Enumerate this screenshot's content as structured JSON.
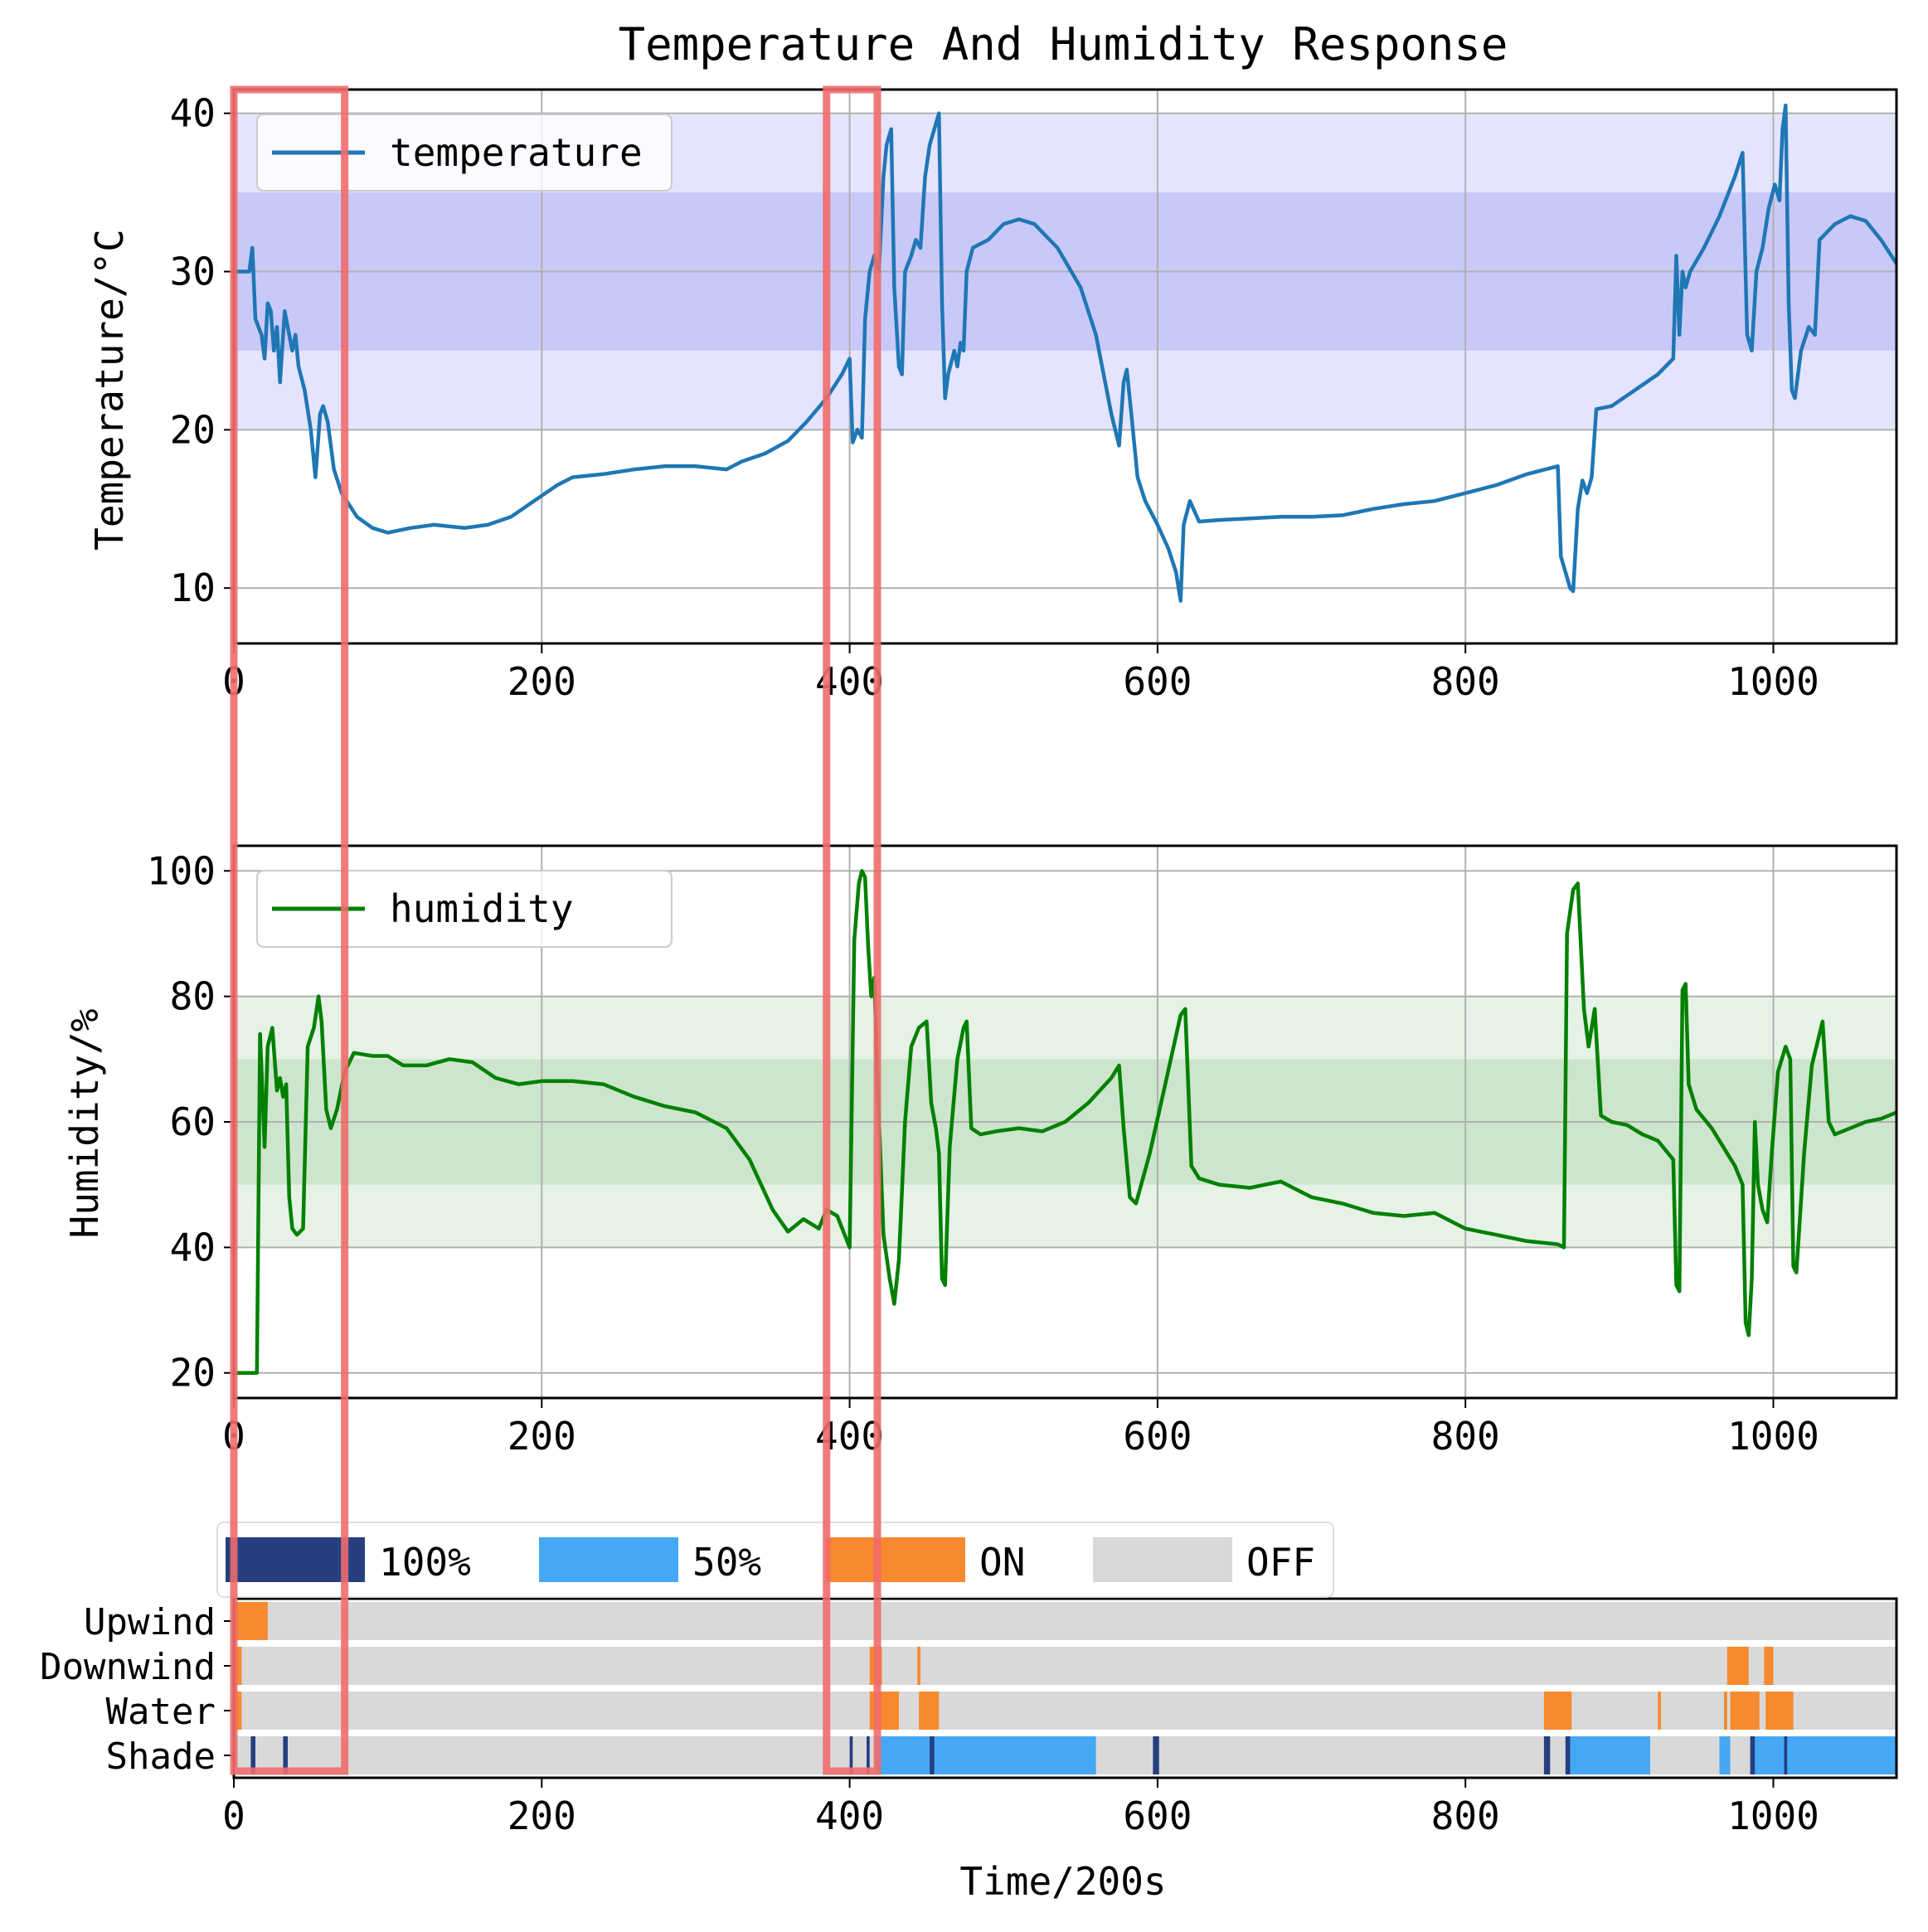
{
  "chart_data": {
    "title": "Temperature And Humidity Response",
    "x_label": "Time/200s",
    "x_range": [
      0,
      1080
    ],
    "x_ticks": [
      0,
      200,
      400,
      600,
      800,
      1000
    ],
    "highlight_windows": [
      [
        0,
        72
      ],
      [
        385,
        418
      ]
    ],
    "colors": {
      "temperature": "#1f77b4",
      "humidity": "#008000",
      "temp_band_outer": "#e4e4ff",
      "temp_band_inner": "#c9c9f9",
      "hum_band_outer": "#e5f2e5",
      "hum_band_inner": "#cce5cc",
      "highlight": "#ef6b6b",
      "off": "#d9d9d9",
      "full": "#253f80",
      "half": "#45a8f5",
      "on": "#f7892e"
    },
    "temperature": {
      "type": "line",
      "series_name": "temperature",
      "y_label": "Temperature/°C",
      "y_range": [
        6.5,
        41.5
      ],
      "y_ticks": [
        10,
        20,
        30,
        40
      ],
      "bands": {
        "outer": [
          20,
          40
        ],
        "inner": [
          25,
          35
        ]
      },
      "points": [
        [
          0,
          30
        ],
        [
          10,
          30
        ],
        [
          12,
          31.5
        ],
        [
          14,
          27
        ],
        [
          18,
          26
        ],
        [
          20,
          24.5
        ],
        [
          22,
          28
        ],
        [
          24,
          27.5
        ],
        [
          26,
          25
        ],
        [
          28,
          26.5
        ],
        [
          30,
          23
        ],
        [
          33,
          27.5
        ],
        [
          36,
          26
        ],
        [
          38,
          25
        ],
        [
          40,
          26
        ],
        [
          42,
          24
        ],
        [
          46,
          22.5
        ],
        [
          50,
          20
        ],
        [
          53,
          17
        ],
        [
          56,
          21
        ],
        [
          58,
          21.5
        ],
        [
          61,
          20.5
        ],
        [
          65,
          17.5
        ],
        [
          70,
          16
        ],
        [
          80,
          14.5
        ],
        [
          90,
          13.8
        ],
        [
          100,
          13.5
        ],
        [
          115,
          13.8
        ],
        [
          130,
          14
        ],
        [
          150,
          13.8
        ],
        [
          165,
          14
        ],
        [
          180,
          14.5
        ],
        [
          195,
          15.5
        ],
        [
          210,
          16.5
        ],
        [
          220,
          17
        ],
        [
          240,
          17.2
        ],
        [
          260,
          17.5
        ],
        [
          280,
          17.7
        ],
        [
          300,
          17.7
        ],
        [
          320,
          17.5
        ],
        [
          330,
          18
        ],
        [
          345,
          18.5
        ],
        [
          360,
          19.3
        ],
        [
          372,
          20.5
        ],
        [
          385,
          22
        ],
        [
          395,
          23.5
        ],
        [
          400,
          24.5
        ],
        [
          402,
          19.2
        ],
        [
          405,
          20
        ],
        [
          408,
          19.5
        ],
        [
          410,
          27
        ],
        [
          413,
          30
        ],
        [
          416,
          31
        ],
        [
          419,
          30
        ],
        [
          422,
          36
        ],
        [
          424,
          38
        ],
        [
          427,
          39
        ],
        [
          429,
          29
        ],
        [
          432,
          24
        ],
        [
          434,
          23.5
        ],
        [
          436,
          30
        ],
        [
          440,
          31
        ],
        [
          443,
          32
        ],
        [
          446,
          31.5
        ],
        [
          449,
          36
        ],
        [
          452,
          38
        ],
        [
          455,
          39
        ],
        [
          458,
          40
        ],
        [
          460,
          28
        ],
        [
          462,
          22
        ],
        [
          464,
          23.5
        ],
        [
          468,
          25
        ],
        [
          470,
          24
        ],
        [
          472,
          25.5
        ],
        [
          474,
          25
        ],
        [
          476,
          30
        ],
        [
          480,
          31.5
        ],
        [
          490,
          32
        ],
        [
          500,
          33
        ],
        [
          510,
          33.3
        ],
        [
          520,
          33
        ],
        [
          535,
          31.5
        ],
        [
          550,
          29
        ],
        [
          560,
          26
        ],
        [
          570,
          21
        ],
        [
          575,
          19
        ],
        [
          578,
          23
        ],
        [
          580,
          23.8
        ],
        [
          583,
          21
        ],
        [
          587,
          17
        ],
        [
          592,
          15.5
        ],
        [
          600,
          14
        ],
        [
          607,
          12.5
        ],
        [
          612,
          11
        ],
        [
          615,
          9.2
        ],
        [
          617,
          14
        ],
        [
          621,
          15.5
        ],
        [
          627,
          14.2
        ],
        [
          640,
          14.3
        ],
        [
          660,
          14.4
        ],
        [
          680,
          14.5
        ],
        [
          700,
          14.5
        ],
        [
          720,
          14.6
        ],
        [
          740,
          15
        ],
        [
          760,
          15.3
        ],
        [
          780,
          15.5
        ],
        [
          800,
          16
        ],
        [
          820,
          16.5
        ],
        [
          840,
          17.2
        ],
        [
          860,
          17.7
        ],
        [
          862,
          12
        ],
        [
          865,
          11
        ],
        [
          868,
          10
        ],
        [
          870,
          9.8
        ],
        [
          873,
          15
        ],
        [
          876,
          16.8
        ],
        [
          879,
          16
        ],
        [
          882,
          17
        ],
        [
          885,
          21.3
        ],
        [
          895,
          21.5
        ],
        [
          910,
          22.5
        ],
        [
          925,
          23.5
        ],
        [
          935,
          24.5
        ],
        [
          937,
          31
        ],
        [
          939,
          26
        ],
        [
          941,
          30
        ],
        [
          943,
          29
        ],
        [
          946,
          30
        ],
        [
          955,
          31.5
        ],
        [
          965,
          33.5
        ],
        [
          975,
          36
        ],
        [
          980,
          37.5
        ],
        [
          983,
          26
        ],
        [
          986,
          25
        ],
        [
          989,
          30
        ],
        [
          993,
          31.5
        ],
        [
          997,
          34
        ],
        [
          1001,
          35.5
        ],
        [
          1004,
          34.5
        ],
        [
          1006,
          39
        ],
        [
          1008,
          40.5
        ],
        [
          1010,
          28
        ],
        [
          1012,
          22.5
        ],
        [
          1014,
          22
        ],
        [
          1018,
          25
        ],
        [
          1023,
          26.5
        ],
        [
          1027,
          26
        ],
        [
          1030,
          32
        ],
        [
          1040,
          33
        ],
        [
          1050,
          33.5
        ],
        [
          1060,
          33.2
        ],
        [
          1070,
          32
        ],
        [
          1080,
          30.5
        ]
      ]
    },
    "humidity": {
      "type": "line",
      "series_name": "humidity",
      "y_label": "Humidity/%",
      "y_range": [
        16,
        104
      ],
      "y_ticks": [
        20,
        40,
        60,
        80,
        100
      ],
      "bands": {
        "outer": [
          40,
          80
        ],
        "inner": [
          50,
          70
        ]
      },
      "points": [
        [
          0,
          20
        ],
        [
          15,
          20
        ],
        [
          17,
          74
        ],
        [
          20,
          56
        ],
        [
          22,
          72
        ],
        [
          25,
          75
        ],
        [
          28,
          65
        ],
        [
          30,
          67
        ],
        [
          32,
          64
        ],
        [
          34,
          66
        ],
        [
          36,
          48
        ],
        [
          38,
          43
        ],
        [
          41,
          42
        ],
        [
          45,
          43
        ],
        [
          48,
          72
        ],
        [
          52,
          75
        ],
        [
          55,
          80
        ],
        [
          57,
          76
        ],
        [
          60,
          62
        ],
        [
          63,
          59
        ],
        [
          67,
          62
        ],
        [
          72,
          68
        ],
        [
          78,
          71
        ],
        [
          90,
          70.5
        ],
        [
          100,
          70.5
        ],
        [
          110,
          69
        ],
        [
          125,
          69
        ],
        [
          140,
          70
        ],
        [
          155,
          69.5
        ],
        [
          170,
          67
        ],
        [
          185,
          66
        ],
        [
          200,
          66.5
        ],
        [
          220,
          66.5
        ],
        [
          240,
          66
        ],
        [
          260,
          64
        ],
        [
          280,
          62.5
        ],
        [
          300,
          61.5
        ],
        [
          320,
          59
        ],
        [
          335,
          54
        ],
        [
          350,
          46
        ],
        [
          360,
          42.5
        ],
        [
          370,
          44.5
        ],
        [
          380,
          43
        ],
        [
          385,
          46
        ],
        [
          392,
          45
        ],
        [
          400,
          40
        ],
        [
          403,
          89
        ],
        [
          406,
          98
        ],
        [
          408,
          100
        ],
        [
          410,
          99
        ],
        [
          412,
          88
        ],
        [
          414,
          80
        ],
        [
          416,
          83
        ],
        [
          418,
          67
        ],
        [
          422,
          42
        ],
        [
          426,
          35
        ],
        [
          429,
          31
        ],
        [
          432,
          38
        ],
        [
          436,
          60
        ],
        [
          440,
          72
        ],
        [
          445,
          75
        ],
        [
          450,
          76
        ],
        [
          453,
          63
        ],
        [
          456,
          59
        ],
        [
          458,
          55
        ],
        [
          460,
          35
        ],
        [
          462,
          34
        ],
        [
          465,
          56
        ],
        [
          470,
          70
        ],
        [
          474,
          75
        ],
        [
          476,
          76
        ],
        [
          479,
          59
        ],
        [
          485,
          58
        ],
        [
          495,
          58.5
        ],
        [
          510,
          59
        ],
        [
          525,
          58.5
        ],
        [
          540,
          60
        ],
        [
          555,
          63
        ],
        [
          570,
          67
        ],
        [
          575,
          69
        ],
        [
          578,
          59
        ],
        [
          582,
          48
        ],
        [
          586,
          47
        ],
        [
          595,
          55
        ],
        [
          605,
          66
        ],
        [
          615,
          77
        ],
        [
          618,
          78
        ],
        [
          622,
          53
        ],
        [
          627,
          51
        ],
        [
          640,
          50
        ],
        [
          660,
          49.5
        ],
        [
          680,
          50.5
        ],
        [
          700,
          48
        ],
        [
          720,
          47
        ],
        [
          740,
          45.5
        ],
        [
          760,
          45
        ],
        [
          780,
          45.5
        ],
        [
          800,
          43
        ],
        [
          820,
          42
        ],
        [
          840,
          41
        ],
        [
          860,
          40.5
        ],
        [
          864,
          40
        ],
        [
          866,
          90
        ],
        [
          870,
          97
        ],
        [
          873,
          98
        ],
        [
          877,
          78
        ],
        [
          880,
          72
        ],
        [
          884,
          78
        ],
        [
          888,
          61
        ],
        [
          895,
          60
        ],
        [
          905,
          59.5
        ],
        [
          915,
          58
        ],
        [
          925,
          57
        ],
        [
          935,
          54
        ],
        [
          937,
          34
        ],
        [
          939,
          33
        ],
        [
          941,
          81
        ],
        [
          943,
          82
        ],
        [
          945,
          66
        ],
        [
          950,
          62
        ],
        [
          960,
          59
        ],
        [
          975,
          53
        ],
        [
          980,
          50
        ],
        [
          982,
          28
        ],
        [
          984,
          26
        ],
        [
          986,
          35
        ],
        [
          988,
          60
        ],
        [
          990,
          50
        ],
        [
          993,
          46
        ],
        [
          996,
          44
        ],
        [
          999,
          55
        ],
        [
          1003,
          68
        ],
        [
          1008,
          72
        ],
        [
          1011,
          70
        ],
        [
          1013,
          37
        ],
        [
          1015,
          36
        ],
        [
          1020,
          55
        ],
        [
          1025,
          69
        ],
        [
          1030,
          74
        ],
        [
          1032,
          76
        ],
        [
          1036,
          60
        ],
        [
          1040,
          58
        ],
        [
          1050,
          59
        ],
        [
          1060,
          60
        ],
        [
          1070,
          60.5
        ],
        [
          1080,
          61.5
        ]
      ]
    },
    "actuators": {
      "type": "state_timeline",
      "legend": [
        {
          "key": "full",
          "label": "100%"
        },
        {
          "key": "half",
          "label": "50%"
        },
        {
          "key": "on",
          "label": "ON"
        },
        {
          "key": "off",
          "label": "OFF"
        }
      ],
      "rows": [
        {
          "name": "Upwind",
          "segments": [
            [
              0,
              22,
              "on"
            ]
          ]
        },
        {
          "name": "Downwind",
          "segments": [
            [
              0,
              5,
              "on"
            ],
            [
              413,
              421,
              "on"
            ],
            [
              444,
              446,
              "on"
            ],
            [
              970,
              984,
              "on"
            ],
            [
              994,
              1000,
              "on"
            ]
          ]
        },
        {
          "name": "Water",
          "segments": [
            [
              0,
              5,
              "on"
            ],
            [
              413,
              432,
              "on"
            ],
            [
              445,
              458,
              "on"
            ],
            [
              851,
              869,
              "on"
            ],
            [
              925,
              927,
              "on"
            ],
            [
              968,
              970,
              "on"
            ],
            [
              972,
              991,
              "on"
            ],
            [
              995,
              1013,
              "on"
            ]
          ]
        },
        {
          "name": "Shade",
          "segments": [
            [
              11,
              14,
              "full"
            ],
            [
              32,
              35,
              "full"
            ],
            [
              400,
              402,
              "full"
            ],
            [
              411,
              413,
              "full"
            ],
            [
              417,
              560,
              "half"
            ],
            [
              452,
              455,
              "full"
            ],
            [
              597,
              601,
              "full"
            ],
            [
              851,
              855,
              "full"
            ],
            [
              865,
              920,
              "half"
            ],
            [
              865,
              868,
              "full"
            ],
            [
              965,
              972,
              "half"
            ],
            [
              985,
              1080,
              "half"
            ],
            [
              985,
              988,
              "full"
            ],
            [
              1007,
              1009,
              "full"
            ]
          ]
        }
      ]
    }
  }
}
